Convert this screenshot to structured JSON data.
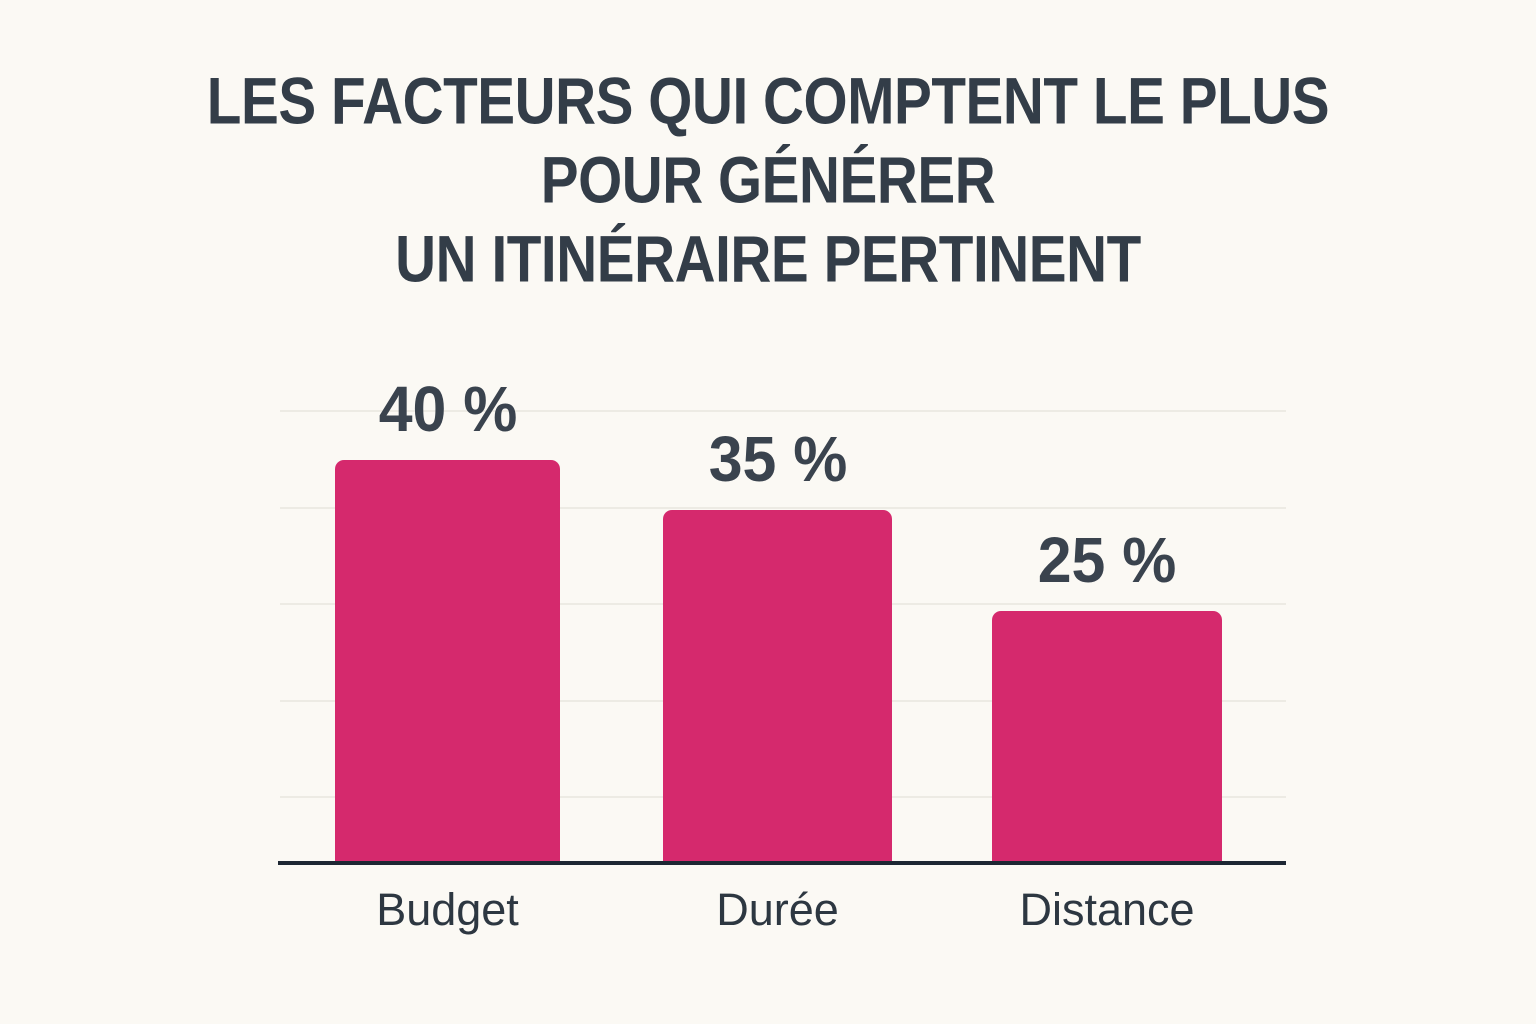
{
  "page": {
    "background_color": "#fbf9f4"
  },
  "chart_data": {
    "type": "bar",
    "title": "LES FACTEURS QUI COMPTENT LE PLUS POUR GÉNÉRER UN ITINÉRAIRE PERTINENT",
    "title_lines": [
      "LES FACTEURS QUI COMPTENT LE PLUS",
      "POUR GÉNÉRER",
      "UN ITINÉRAIRE PERTINENT"
    ],
    "categories": [
      "Budget",
      "Durée",
      "Distance"
    ],
    "values": [
      40,
      35,
      25
    ],
    "value_labels": [
      "40 %",
      "35 %",
      "25 %"
    ],
    "unit": "%",
    "xlabel": "",
    "ylabel": "",
    "ylim": [
      0,
      45
    ],
    "grid": "horizontal-light",
    "gridline_count": 5,
    "legend": "none",
    "colors": {
      "bar": "#d5296d",
      "title_text": "#333d48",
      "value_text": "#3a434e",
      "category_text": "#2d3741",
      "axis_line": "#1d2733",
      "gridline": "#edebe4",
      "background": "#fbf9f4"
    }
  }
}
